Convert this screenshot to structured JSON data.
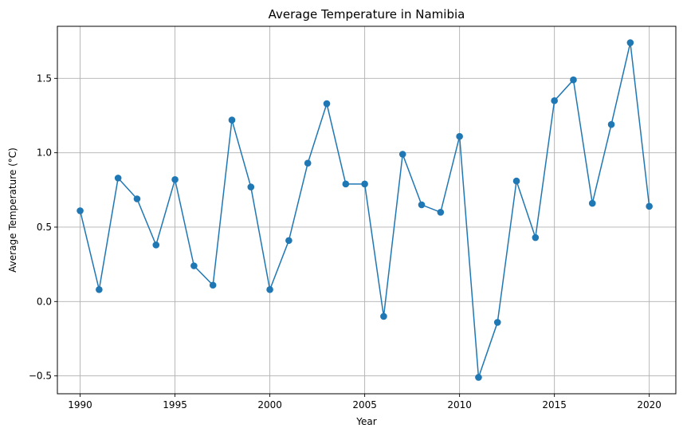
{
  "chart_data": {
    "type": "line",
    "title": "Average Temperature in Namibia",
    "xlabel": "Year",
    "ylabel": "Average Temperature (°C)",
    "xlim": [
      1988.8,
      2021.4
    ],
    "ylim": [
      -0.62,
      1.85
    ],
    "xticks": [
      1990,
      1995,
      2000,
      2005,
      2010,
      2015,
      2020
    ],
    "yticks": [
      -0.5,
      0.0,
      0.5,
      1.0,
      1.5
    ],
    "ytick_labels": [
      "−0.5",
      "0.0",
      "0.5",
      "1.0",
      "1.5"
    ],
    "grid": true,
    "color": "#1f77b4",
    "marker": "circle",
    "series": [
      {
        "x": [
          1990,
          1991,
          1992,
          1993,
          1994,
          1995,
          1996,
          1997,
          1998,
          1999,
          2000,
          2001,
          2002,
          2003,
          2004,
          2005,
          2006,
          2007,
          2008,
          2009,
          2010,
          2011,
          2012,
          2013,
          2014,
          2015,
          2016,
          2017,
          2018,
          2019,
          2020
        ],
        "values": [
          0.61,
          0.08,
          0.83,
          0.69,
          0.38,
          0.82,
          0.24,
          0.11,
          1.22,
          0.77,
          0.08,
          0.41,
          0.93,
          1.33,
          0.79,
          0.79,
          -0.1,
          0.99,
          0.65,
          0.6,
          1.11,
          -0.51,
          -0.14,
          0.81,
          0.43,
          1.35,
          1.49,
          0.66,
          1.19,
          1.74,
          0.64
        ]
      }
    ]
  }
}
